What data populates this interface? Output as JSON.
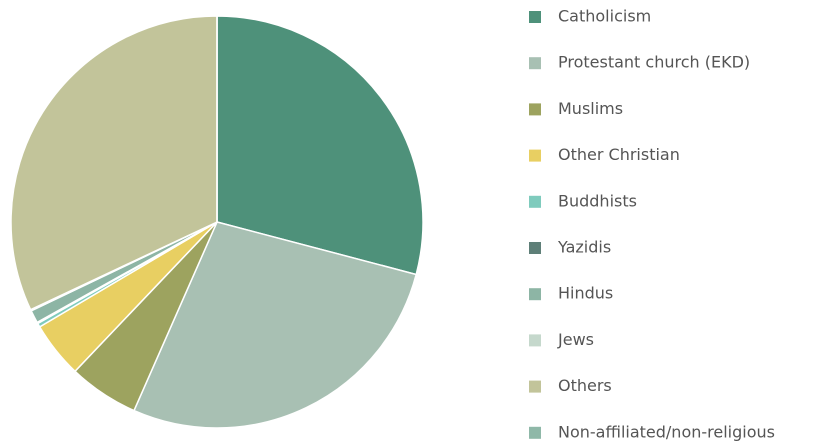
{
  "chart_data": {
    "type": "pie",
    "categories": [
      "Catholicism",
      "Protestant church (EKD)",
      "Muslims",
      "Other Christian",
      "Buddhists",
      "Yazidis",
      "Hindus",
      "Jews",
      "Others",
      "Non-affiliated/non-religious"
    ],
    "values": [
      29.1,
      27.5,
      5.5,
      4.4,
      0.3,
      0.1,
      1.0,
      0.1,
      32.0,
      0
    ],
    "colors": [
      "#4e917a",
      "#a8c0b3",
      "#9da35f",
      "#e8cf62",
      "#7fcbbd",
      "#5e7f78",
      "#8db5a5",
      "#c5d8cc",
      "#c2c49a",
      "#8fb8a8"
    ],
    "legend": "right"
  }
}
